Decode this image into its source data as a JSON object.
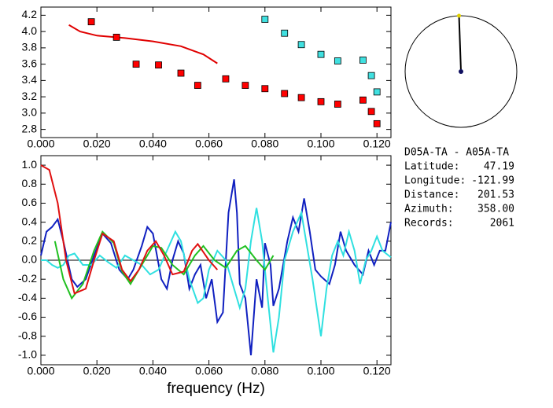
{
  "chart_data": [
    {
      "type": "scatter",
      "xlim": [
        0,
        0.125
      ],
      "ylim": [
        2.7,
        4.3
      ],
      "xticks": [
        {
          "value": 0,
          "label": "0.000"
        },
        {
          "value": 0.02,
          "label": "0.020"
        },
        {
          "value": 0.04,
          "label": "0.040"
        },
        {
          "value": 0.06,
          "label": "0.060"
        },
        {
          "value": 0.08,
          "label": "0.080"
        },
        {
          "value": 0.1,
          "label": "0.100"
        },
        {
          "value": 0.12,
          "label": "0.120"
        }
      ],
      "yticks": [
        2.8,
        {
          "value": 3,
          "label": "3.0"
        },
        3.2,
        3.4,
        3.6,
        3.8,
        {
          "value": 4,
          "label": "4.0"
        },
        4.2
      ],
      "series": [
        {
          "mode": "line",
          "color": "#e00000",
          "x": [
            0.01,
            0.014,
            0.02,
            0.03,
            0.04,
            0.05,
            0.058,
            0.063
          ],
          "values": [
            4.08,
            4.0,
            3.95,
            3.92,
            3.88,
            3.82,
            3.72,
            3.61
          ]
        },
        {
          "mode": "markers",
          "color": "#ff0000",
          "x": [
            0.018,
            0.027,
            0.034,
            0.042,
            0.05,
            0.056,
            0.066,
            0.073,
            0.08,
            0.087,
            0.093,
            0.1,
            0.106,
            0.115,
            0.118,
            0.12
          ],
          "values": [
            4.12,
            3.93,
            3.6,
            3.59,
            3.49,
            3.34,
            3.42,
            3.34,
            3.3,
            3.24,
            3.19,
            3.14,
            3.11,
            3.16,
            3.02,
            2.87
          ]
        },
        {
          "mode": "markers",
          "color": "#40e0e0",
          "x": [
            0.08,
            0.087,
            0.093,
            0.1,
            0.106,
            0.115,
            0.118,
            0.12
          ],
          "values": [
            4.15,
            3.98,
            3.84,
            3.72,
            3.64,
            3.65,
            3.46,
            3.26
          ]
        }
      ]
    },
    {
      "type": "line",
      "x_label": "frequency (Hz)",
      "xlim": [
        0,
        0.125
      ],
      "ylim": [
        -1.1,
        1.1
      ],
      "xticks": [
        {
          "value": 0,
          "label": "0.000"
        },
        {
          "value": 0.02,
          "label": "0.020"
        },
        {
          "value": 0.04,
          "label": "0.040"
        },
        {
          "value": 0.06,
          "label": "0.060"
        },
        {
          "value": 0.08,
          "label": "0.080"
        },
        {
          "value": 0.1,
          "label": "0.100"
        },
        {
          "value": 0.12,
          "label": "0.120"
        }
      ],
      "yticks": [
        {
          "value": 1,
          "label": "1.0"
        },
        0.8,
        0.6,
        0.4,
        0.2,
        {
          "value": 0,
          "label": "0.0"
        },
        -0.2,
        -0.4,
        -0.6,
        -0.8,
        {
          "value": -1,
          "label": "-1.0"
        }
      ],
      "series": [
        {
          "color": "#1020c0",
          "x": [
            0,
            0.002,
            0.004,
            0.006,
            0.008,
            0.011,
            0.013,
            0.016,
            0.019,
            0.022,
            0.025,
            0.028,
            0.031,
            0.033,
            0.036,
            0.038,
            0.04,
            0.043,
            0.045,
            0.047,
            0.049,
            0.051,
            0.053,
            0.055,
            0.057,
            0.059,
            0.061,
            0.063,
            0.065,
            0.067,
            0.069,
            0.07,
            0.071,
            0.073,
            0.075,
            0.077,
            0.079,
            0.08,
            0.082,
            0.083,
            0.085,
            0.088,
            0.09,
            0.092,
            0.094,
            0.096,
            0.098,
            0.1,
            0.103,
            0.105,
            0.107,
            0.109,
            0.112,
            0.115,
            0.117,
            0.119,
            0.121,
            0.123,
            0.125
          ],
          "values": [
            0.05,
            0.3,
            0.35,
            0.43,
            0.2,
            -0.2,
            -0.28,
            -0.2,
            0.05,
            0.28,
            0.18,
            -0.1,
            -0.2,
            -0.1,
            0.15,
            0.35,
            0.28,
            -0.2,
            -0.3,
            0.0,
            0.2,
            0.07,
            -0.3,
            -0.15,
            -0.05,
            -0.4,
            -0.2,
            -0.65,
            -0.55,
            0.5,
            0.85,
            0.5,
            -0.25,
            -0.4,
            -1.0,
            -0.2,
            -0.5,
            0.18,
            -0.05,
            -0.48,
            -0.3,
            0.2,
            0.45,
            0.3,
            0.65,
            0.3,
            -0.1,
            -0.17,
            -0.25,
            -0.05,
            0.3,
            0.1,
            -0.05,
            -0.15,
            0.1,
            -0.05,
            0.1,
            0.1,
            0.4
          ]
        },
        {
          "color": "#30e0e0",
          "x": [
            0,
            0.002,
            0.004,
            0.006,
            0.008,
            0.01,
            0.012,
            0.015,
            0.018,
            0.021,
            0.024,
            0.027,
            0.03,
            0.033,
            0.036,
            0.039,
            0.042,
            0.045,
            0.048,
            0.05,
            0.053,
            0.056,
            0.058,
            0.06,
            0.063,
            0.066,
            0.069,
            0.071,
            0.073,
            0.075,
            0.077,
            0.079,
            0.081,
            0.083,
            0.085,
            0.087,
            0.09,
            0.093,
            0.095,
            0.097,
            0.099,
            0.1,
            0.102,
            0.104,
            0.106,
            0.108,
            0.11,
            0.112,
            0.114,
            0.116,
            0.118,
            0.12,
            0.122,
            0.125
          ],
          "values": [
            0.0,
            0.0,
            -0.05,
            -0.08,
            -0.05,
            0.05,
            0.07,
            -0.05,
            -0.05,
            0.05,
            -0.02,
            -0.08,
            0.05,
            0.0,
            -0.05,
            -0.15,
            -0.1,
            0.1,
            0.3,
            0.2,
            -0.2,
            -0.45,
            -0.4,
            -0.1,
            0.1,
            0.0,
            -0.3,
            -0.5,
            -0.3,
            0.2,
            0.55,
            0.2,
            -0.4,
            -0.97,
            -0.6,
            0.0,
            0.3,
            0.5,
            0.15,
            -0.2,
            -0.6,
            -0.8,
            -0.3,
            0.05,
            0.2,
            0.05,
            0.3,
            0.1,
            -0.25,
            0.0,
            0.1,
            0.25,
            0.1,
            0.03
          ]
        },
        {
          "color": "#20c020",
          "x": [
            0.005,
            0.008,
            0.011,
            0.015,
            0.019,
            0.022,
            0.026,
            0.029,
            0.032,
            0.036,
            0.04,
            0.043,
            0.047,
            0.051,
            0.055,
            0.058,
            0.062,
            0.066,
            0.07,
            0.073,
            0.077,
            0.08,
            0.083
          ],
          "values": [
            0.2,
            -0.2,
            -0.4,
            -0.25,
            0.1,
            0.3,
            0.18,
            -0.12,
            -0.25,
            -0.05,
            0.15,
            0.13,
            -0.05,
            -0.15,
            0.05,
            0.15,
            0.0,
            -0.08,
            0.1,
            0.15,
            0.0,
            -0.1,
            0.05
          ]
        },
        {
          "color": "#e01010",
          "x": [
            0,
            0.003,
            0.006,
            0.009,
            0.012,
            0.016,
            0.019,
            0.022,
            0.026,
            0.029,
            0.032,
            0.035,
            0.038,
            0.041,
            0.044,
            0.047,
            0.051,
            0.054,
            0.056,
            0.06,
            0.063
          ],
          "values": [
            1.0,
            0.95,
            0.6,
            0.0,
            -0.35,
            -0.3,
            0.0,
            0.28,
            0.2,
            -0.1,
            -0.22,
            -0.1,
            0.1,
            0.2,
            0.05,
            -0.15,
            -0.12,
            0.1,
            0.17,
            0.0,
            -0.1
          ]
        }
      ]
    }
  ],
  "station": {
    "title": "D05A-TA  -  A05A-TA",
    "fields": [
      {
        "label": "Latitude:",
        "value": 47.19
      },
      {
        "label": "Longitude:",
        "value": -121.99
      },
      {
        "label": "Distance:",
        "value": 201.53
      },
      {
        "label": "Azimuth:",
        "value": {
          "value": 358,
          "label": "358.00"
        }
      },
      {
        "label": "Records:",
        "value": 2061
      }
    ]
  }
}
